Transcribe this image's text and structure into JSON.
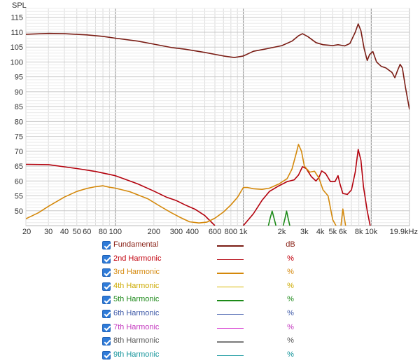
{
  "chart_data": {
    "type": "line",
    "ylabel": "SPL",
    "x_scale": "log",
    "xlim": [
      20,
      19900
    ],
    "ylim": [
      45,
      118
    ],
    "x_ticks": [
      {
        "v": 20,
        "label": "20"
      },
      {
        "v": 30,
        "label": "30"
      },
      {
        "v": 40,
        "label": "40"
      },
      {
        "v": 50,
        "label": "50"
      },
      {
        "v": 60,
        "label": "60"
      },
      {
        "v": 80,
        "label": "80"
      },
      {
        "v": 100,
        "label": "100"
      },
      {
        "v": 200,
        "label": "200"
      },
      {
        "v": 300,
        "label": "300"
      },
      {
        "v": 400,
        "label": "400"
      },
      {
        "v": 600,
        "label": "600"
      },
      {
        "v": 800,
        "label": "800"
      },
      {
        "v": 1000,
        "label": "1k"
      },
      {
        "v": 2000,
        "label": "2k"
      },
      {
        "v": 3000,
        "label": "3k"
      },
      {
        "v": 4000,
        "label": "4k"
      },
      {
        "v": 5000,
        "label": "5k"
      },
      {
        "v": 6000,
        "label": "6k"
      },
      {
        "v": 8000,
        "label": "8k"
      },
      {
        "v": 10000,
        "label": "10k"
      },
      {
        "v": 19900,
        "label": "19.9kHz"
      }
    ],
    "y_ticks": [
      50,
      55,
      60,
      65,
      70,
      75,
      80,
      85,
      90,
      95,
      100,
      105,
      110,
      115
    ],
    "grid": true,
    "series": [
      {
        "name": "Fundamental",
        "unit": "dB",
        "color": "#7a1c14",
        "points": [
          [
            20,
            109.3
          ],
          [
            30,
            109.6
          ],
          [
            40,
            109.5
          ],
          [
            60,
            109.1
          ],
          [
            80,
            108.6
          ],
          [
            100,
            108.0
          ],
          [
            150,
            107
          ],
          [
            200,
            106
          ],
          [
            280,
            104.8
          ],
          [
            350,
            104.3
          ],
          [
            500,
            103.2
          ],
          [
            700,
            102
          ],
          [
            850,
            101.5
          ],
          [
            1000,
            102
          ],
          [
            1200,
            103.6
          ],
          [
            1500,
            104.4
          ],
          [
            2000,
            105.5
          ],
          [
            2400,
            107
          ],
          [
            2700,
            108.8
          ],
          [
            2900,
            109.5
          ],
          [
            3200,
            108.5
          ],
          [
            3700,
            106.5
          ],
          [
            4200,
            105.8
          ],
          [
            5000,
            105.5
          ],
          [
            5500,
            105.8
          ],
          [
            6200,
            105.4
          ],
          [
            6800,
            106.2
          ],
          [
            7500,
            110
          ],
          [
            7900,
            112.8
          ],
          [
            8300,
            110.5
          ],
          [
            8800,
            104.5
          ],
          [
            9300,
            100.5
          ],
          [
            9700,
            102.5
          ],
          [
            10300,
            103.5
          ],
          [
            11000,
            100
          ],
          [
            12000,
            98.5
          ],
          [
            13000,
            98
          ],
          [
            14500,
            96.5
          ],
          [
            15300,
            94.7
          ],
          [
            16000,
            97
          ],
          [
            16800,
            99.2
          ],
          [
            17500,
            98
          ],
          [
            18500,
            91.5
          ],
          [
            19900,
            84
          ]
        ]
      },
      {
        "name": "2nd Harmonic",
        "unit": "%",
        "color": "#b3000c",
        "points": [
          [
            20,
            65.6
          ],
          [
            30,
            65.5
          ],
          [
            50,
            64.2
          ],
          [
            70,
            63.2
          ],
          [
            100,
            61.8
          ],
          [
            150,
            59
          ],
          [
            200,
            56.6
          ],
          [
            250,
            54.6
          ],
          [
            300,
            53.4
          ],
          [
            350,
            52.0
          ],
          [
            420,
            50.5
          ],
          [
            500,
            48.4
          ],
          [
            560,
            46.3
          ],
          [
            600,
            45
          ],
          [
            null,
            null
          ],
          [
            1000,
            45
          ],
          [
            1200,
            49
          ],
          [
            1400,
            53.5
          ],
          [
            1600,
            56.5
          ],
          [
            1900,
            58.4
          ],
          [
            2200,
            59.8
          ],
          [
            2500,
            60.4
          ],
          [
            2700,
            62
          ],
          [
            2900,
            64.8
          ],
          [
            3100,
            64.2
          ],
          [
            3400,
            61.5
          ],
          [
            3700,
            60
          ],
          [
            3900,
            61.2
          ],
          [
            4100,
            63.4
          ],
          [
            4400,
            62.5
          ],
          [
            4800,
            59.8
          ],
          [
            5200,
            59.8
          ],
          [
            5500,
            61.8
          ],
          [
            5700,
            59
          ],
          [
            6000,
            55.8
          ],
          [
            6500,
            55.5
          ],
          [
            7000,
            57
          ],
          [
            7500,
            63
          ],
          [
            7900,
            70.6
          ],
          [
            8300,
            67
          ],
          [
            8700,
            58
          ],
          [
            9300,
            50
          ],
          [
            9800,
            45
          ]
        ]
      },
      {
        "name": "3rd Harmonic",
        "unit": "%",
        "color": "#d4880a",
        "points": [
          [
            20,
            47.3
          ],
          [
            25,
            49.3
          ],
          [
            30,
            51.5
          ],
          [
            40,
            54.6
          ],
          [
            50,
            56.5
          ],
          [
            60,
            57.5
          ],
          [
            70,
            58.1
          ],
          [
            80,
            58.4
          ],
          [
            90,
            57.9
          ],
          [
            100,
            57.6
          ],
          [
            130,
            56.4
          ],
          [
            180,
            54
          ],
          [
            220,
            51.7
          ],
          [
            270,
            49.5
          ],
          [
            320,
            47.8
          ],
          [
            380,
            46.3
          ],
          [
            450,
            45.9
          ],
          [
            520,
            46.2
          ],
          [
            600,
            47.5
          ],
          [
            700,
            49.6
          ],
          [
            800,
            52
          ],
          [
            900,
            54.5
          ],
          [
            1000,
            57.8
          ],
          [
            1080,
            57.8
          ],
          [
            1200,
            57.4
          ],
          [
            1400,
            57.2
          ],
          [
            1600,
            57.6
          ],
          [
            1900,
            59
          ],
          [
            2200,
            60.8
          ],
          [
            2400,
            64
          ],
          [
            2600,
            69.5
          ],
          [
            2700,
            72.3
          ],
          [
            2850,
            70
          ],
          [
            3000,
            65
          ],
          [
            3300,
            63
          ],
          [
            3600,
            63.3
          ],
          [
            3900,
            61
          ],
          [
            4200,
            57
          ],
          [
            4600,
            55
          ],
          [
            5000,
            47
          ],
          [
            5300,
            45
          ],
          [
            null,
            null
          ],
          [
            5800,
            45
          ],
          [
            6000,
            50.6
          ],
          [
            6300,
            45
          ]
        ]
      },
      {
        "name": "5th Harmonic",
        "unit": "%",
        "color": "#1c8a18",
        "points": [
          [
            1570,
            45
          ],
          [
            1620,
            47.5
          ],
          [
            1680,
            49.9
          ],
          [
            1740,
            47.5
          ],
          [
            1800,
            45
          ],
          [
            null,
            null
          ],
          [
            2050,
            45
          ],
          [
            2120,
            47.5
          ],
          [
            2180,
            49.9
          ],
          [
            2240,
            47.5
          ],
          [
            2310,
            45
          ]
        ]
      }
    ]
  },
  "legend": [
    {
      "name": "Fundamental",
      "unit": "dB",
      "color": "#7a1c14",
      "text_color": "#8a2318"
    },
    {
      "name": "2nd Harmonic",
      "unit": "%",
      "color": "#b3000c",
      "text_color": "#c2000d"
    },
    {
      "name": "3rd Harmonic",
      "unit": "%",
      "color": "#d4880a",
      "text_color": "#d58a10"
    },
    {
      "name": "4th Harmonic",
      "unit": "%",
      "color": "#d9b800",
      "text_color": "#ccaa00"
    },
    {
      "name": "5th Harmonic",
      "unit": "%",
      "color": "#1c8a18",
      "text_color": "#1f8a1c"
    },
    {
      "name": "6th Harmonic",
      "unit": "%",
      "color": "#4a64b0",
      "text_color": "#3f5aa8"
    },
    {
      "name": "7th Harmonic",
      "unit": "%",
      "color": "#d63bd0",
      "text_color": "#c43bbf"
    },
    {
      "name": "8th Harmonic",
      "unit": "%",
      "color": "#7a7a7a",
      "text_color": "#555555"
    },
    {
      "name": "9th Harmonic",
      "unit": "%",
      "color": "#1a9aa0",
      "text_color": "#14949a"
    }
  ]
}
